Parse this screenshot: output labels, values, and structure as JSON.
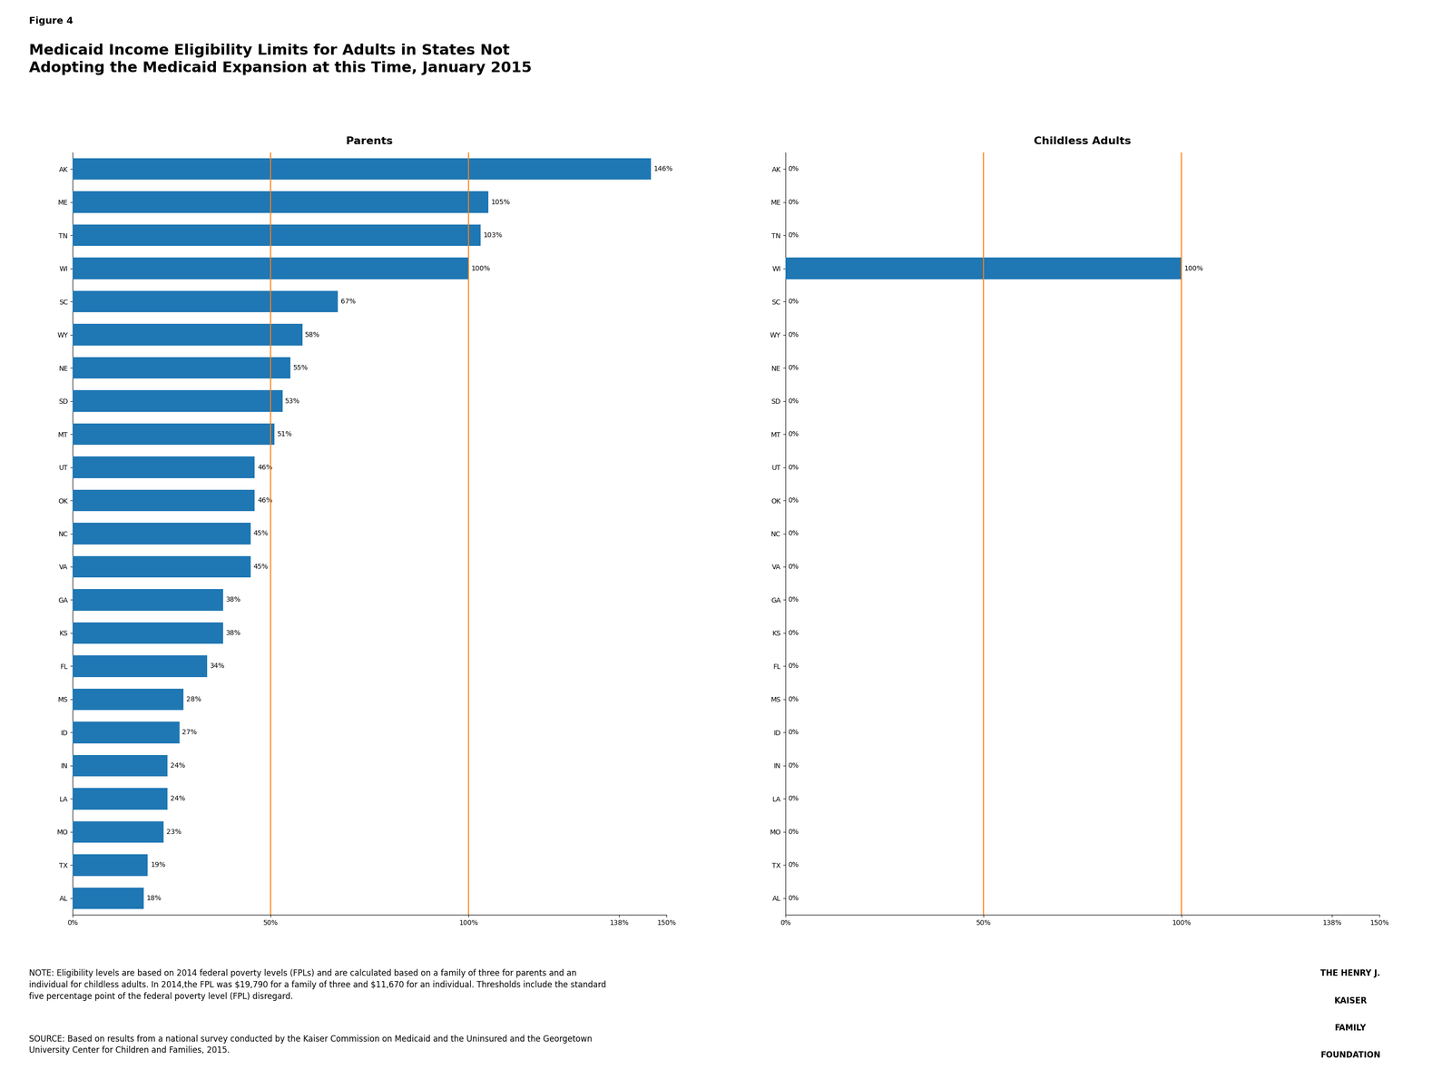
{
  "title": "Medicaid Income Eligibility Limits for Adults in States Not\nAdopting the Medicaid Expansion at this Time, January 2015",
  "annotations": [
    "Figure 4",
    "NOTE: Eligibility levels are based on 2014 federal poverty levels (FPLs) and are calculated based on a family of three for parents and an\nindividual for childless adults. In 2014,the FPL was $19,790 for a family of three and $11,670 for an individual. Thresholds include the standard\nfive percentage point of the federal poverty level (FPL) disregard.",
    "SOURCE: Based on results from a national survey conducted by the Kaiser Commission on Medicaid and the Uninsured and the Georgetown\nUniversity Center for Children and Families, 2015.",
    "THE HENRY J.",
    "KAISER",
    "FAMILY",
    "FOUNDATION"
  ],
  "chart_data": [
    {
      "type": "bar",
      "orientation": "horizontal",
      "title": "Parents",
      "categories": [
        "AK",
        "ME",
        "TN",
        "WI",
        "SC",
        "WY",
        "NE",
        "SD",
        "MT",
        "UT",
        "OK",
        "NC",
        "VA",
        "GA",
        "KS",
        "FL",
        "MS",
        "ID",
        "IN",
        "LA",
        "MO",
        "TX",
        "AL"
      ],
      "values": [
        146,
        105,
        103,
        100,
        67,
        58,
        55,
        53,
        51,
        46,
        46,
        45,
        45,
        38,
        38,
        34,
        28,
        27,
        24,
        24,
        23,
        19,
        18
      ],
      "data_labels": true,
      "value_labels": [
        "146%",
        "105%",
        "103%",
        "100%",
        "67%",
        "58%",
        "55%",
        "53%",
        "51%",
        "46%",
        "46%",
        "45%",
        "45%",
        "38%",
        "38%",
        "34%",
        "28%",
        "27%",
        "24%",
        "24%",
        "23%",
        "19%",
        "18%"
      ],
      "xlim": [
        0,
        150
      ],
      "xticks": [
        {
          "value": 0,
          "label": "0%"
        },
        {
          "value": 50,
          "label": "50%"
        },
        {
          "value": 100,
          "label": "100%"
        },
        {
          "value": 138,
          "label": "138%"
        },
        {
          "value": 150,
          "label": "150%"
        }
      ],
      "reference_lines": [
        50,
        100
      ],
      "grid": false
    },
    {
      "type": "bar",
      "orientation": "horizontal",
      "title": "Childless Adults",
      "categories": [
        "AK",
        "ME",
        "TN",
        "WI",
        "SC",
        "WY",
        "NE",
        "SD",
        "MT",
        "UT",
        "OK",
        "NC",
        "VA",
        "GA",
        "KS",
        "FL",
        "MS",
        "ID",
        "IN",
        "LA",
        "MO",
        "TX",
        "AL"
      ],
      "values": [
        0,
        0,
        0,
        100,
        0,
        0,
        0,
        0,
        0,
        0,
        0,
        0,
        0,
        0,
        0,
        0,
        0,
        0,
        0,
        0,
        0,
        0,
        0
      ],
      "data_labels": true,
      "value_labels": [
        "0%",
        "0%",
        "0%",
        "100%",
        "0%",
        "0%",
        "0%",
        "0%",
        "0%",
        "0%",
        "0%",
        "0%",
        "0%",
        "0%",
        "0%",
        "0%",
        "0%",
        "0%",
        "0%",
        "0%",
        "0%",
        "0%",
        "0%"
      ],
      "xlim": [
        0,
        150
      ],
      "xticks": [
        {
          "value": 0,
          "label": "0%"
        },
        {
          "value": 50,
          "label": "50%"
        },
        {
          "value": 100,
          "label": "100%"
        },
        {
          "value": 138,
          "label": "138%"
        },
        {
          "value": 150,
          "label": "150%"
        }
      ],
      "reference_lines": [
        50,
        100
      ],
      "grid": false
    }
  ]
}
